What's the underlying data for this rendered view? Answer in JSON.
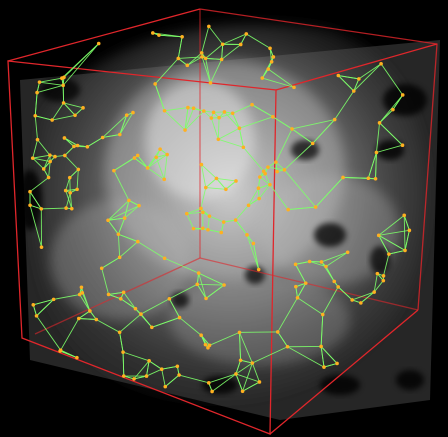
{
  "scene": {
    "description_visible_text": "",
    "colors": {
      "background": "#000000",
      "bounding_box": "#e0262b",
      "edges": "#7dff6a",
      "nodes": "#ffb020",
      "volume": "#bdbdbd"
    },
    "icons": [
      "volume-render",
      "node-graph",
      "bounding-cube"
    ]
  }
}
